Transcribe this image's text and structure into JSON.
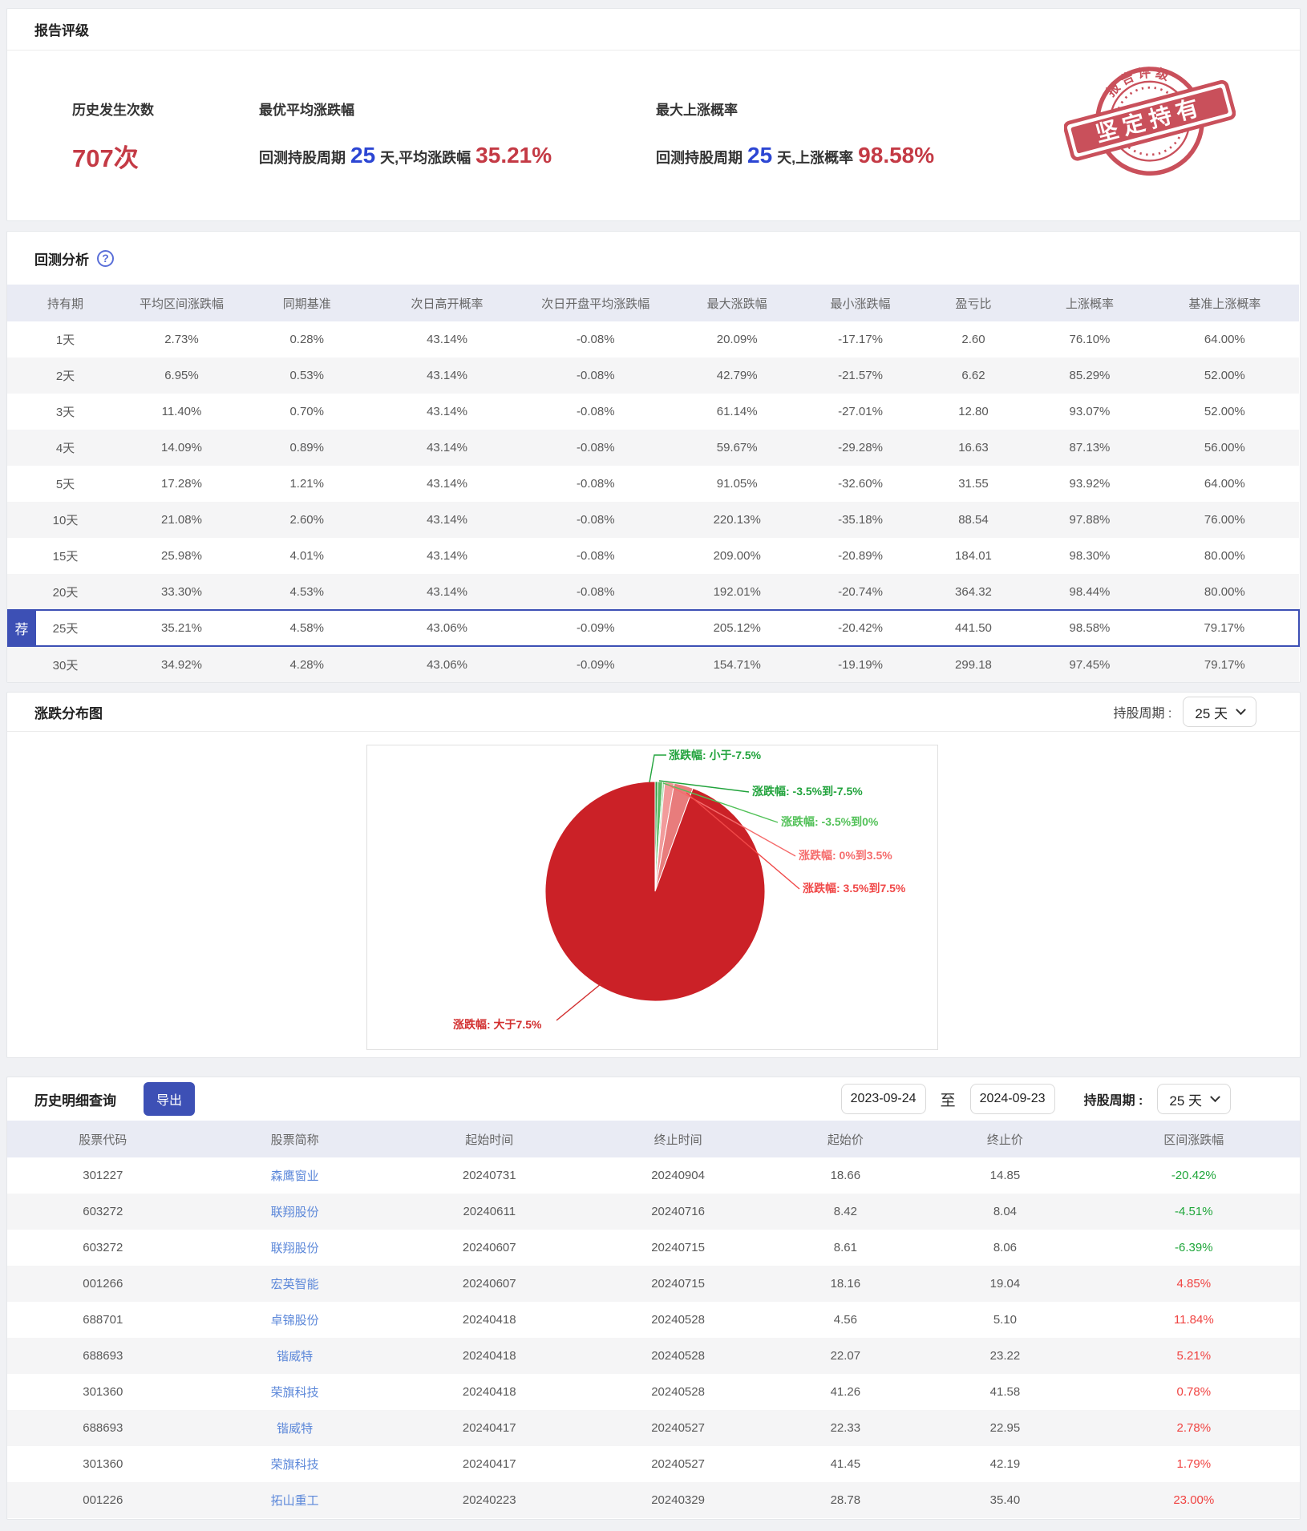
{
  "report_rating": {
    "title": "报告评级",
    "stats": [
      {
        "label": "历史发生次数",
        "value": "707次"
      },
      {
        "label": "最优平均涨跌幅",
        "prefix": "回测持股周期",
        "days": "25",
        "middle": "天,平均涨跌幅",
        "value": "35.21%"
      },
      {
        "label": "最大上涨概率",
        "prefix": "回测持股周期",
        "days": "25",
        "middle": "天,上涨概率",
        "value": "98.58%"
      }
    ],
    "stamp": {
      "arc_text": "报告评级",
      "banner_text": "坚定持有"
    }
  },
  "backtest": {
    "title": "回测分析",
    "help_icon": "?",
    "badge": "荐",
    "columns": [
      "持有期",
      "平均区间涨跌幅",
      "同期基准",
      "次日高开概率",
      "次日开盘平均涨跌幅",
      "最大涨跌幅",
      "最小涨跌幅",
      "盈亏比",
      "上涨概率",
      "基准上涨概率"
    ],
    "rows": [
      {
        "period": "1天",
        "recommended": false,
        "cells": [
          "2.73%",
          "0.28%",
          "43.14%",
          "-0.08%",
          "20.09%",
          "-17.17%",
          "2.60",
          "76.10%",
          "64.00%"
        ]
      },
      {
        "period": "2天",
        "recommended": false,
        "cells": [
          "6.95%",
          "0.53%",
          "43.14%",
          "-0.08%",
          "42.79%",
          "-21.57%",
          "6.62",
          "85.29%",
          "52.00%"
        ]
      },
      {
        "period": "3天",
        "recommended": false,
        "cells": [
          "11.40%",
          "0.70%",
          "43.14%",
          "-0.08%",
          "61.14%",
          "-27.01%",
          "12.80",
          "93.07%",
          "52.00%"
        ]
      },
      {
        "period": "4天",
        "recommended": false,
        "cells": [
          "14.09%",
          "0.89%",
          "43.14%",
          "-0.08%",
          "59.67%",
          "-29.28%",
          "16.63",
          "87.13%",
          "56.00%"
        ]
      },
      {
        "period": "5天",
        "recommended": false,
        "cells": [
          "17.28%",
          "1.21%",
          "43.14%",
          "-0.08%",
          "91.05%",
          "-32.60%",
          "31.55",
          "93.92%",
          "64.00%"
        ]
      },
      {
        "period": "10天",
        "recommended": false,
        "cells": [
          "21.08%",
          "2.60%",
          "43.14%",
          "-0.08%",
          "220.13%",
          "-35.18%",
          "88.54",
          "97.88%",
          "76.00%"
        ]
      },
      {
        "period": "15天",
        "recommended": false,
        "cells": [
          "25.98%",
          "4.01%",
          "43.14%",
          "-0.08%",
          "209.00%",
          "-20.89%",
          "184.01",
          "98.30%",
          "80.00%"
        ]
      },
      {
        "period": "20天",
        "recommended": false,
        "cells": [
          "33.30%",
          "4.53%",
          "43.14%",
          "-0.08%",
          "192.01%",
          "-20.74%",
          "364.32",
          "98.44%",
          "80.00%"
        ]
      },
      {
        "period": "25天",
        "recommended": true,
        "cells": [
          "35.21%",
          "4.58%",
          "43.06%",
          "-0.09%",
          "205.12%",
          "-20.42%",
          "441.50",
          "98.58%",
          "79.17%"
        ]
      },
      {
        "period": "30天",
        "recommended": false,
        "cells": [
          "34.92%",
          "4.28%",
          "43.06%",
          "-0.09%",
          "154.71%",
          "-19.19%",
          "299.18",
          "97.45%",
          "79.17%"
        ]
      }
    ]
  },
  "distribution": {
    "title": "涨跌分布图",
    "period_label": "持股周期 :",
    "period_value": "25 天"
  },
  "chart_data": {
    "type": "pie",
    "title": "涨跌分布图(持股周期25天)",
    "labels": [
      "涨跌幅: 小于-7.5%",
      "涨跌幅: -3.5%到-7.5%",
      "涨跌幅: -3.5%到0%",
      "涨跌幅: 0%到3.5%",
      "涨跌幅: 3.5%到7.5%",
      "涨跌幅: 大于7.5%"
    ],
    "values_pct": [
      0.4,
      0.7,
      0.3,
      1.4,
      2.8,
      94.4
    ],
    "slice_colors": [
      "#2f9e44",
      "#5cbb66",
      "#a9dcad",
      "#f29b9b",
      "#e87c7c",
      "#cb2127"
    ],
    "label_colors": [
      "#21a33c",
      "#21a33c",
      "#52c158",
      "#f56c6c",
      "#f04848",
      "#d22f2f"
    ],
    "legend_position": "none",
    "grid": false
  },
  "history": {
    "title": "历史明细查询",
    "export_label": "导出",
    "date_from": "2023-09-24",
    "range_separator": "至",
    "date_to": "2024-09-23",
    "period_label": "持股周期 :",
    "period_value": "25 天",
    "columns": [
      "股票代码",
      "股票简称",
      "起始时间",
      "终止时间",
      "起始价",
      "终止价",
      "区间涨跌幅"
    ],
    "rows": [
      {
        "code": "301227",
        "name": "森鹰窗业",
        "start": "20240731",
        "end": "20240904",
        "start_price": "18.66",
        "end_price": "14.85",
        "change": "-20.42%"
      },
      {
        "code": "603272",
        "name": "联翔股份",
        "start": "20240611",
        "end": "20240716",
        "start_price": "8.42",
        "end_price": "8.04",
        "change": "-4.51%"
      },
      {
        "code": "603272",
        "name": "联翔股份",
        "start": "20240607",
        "end": "20240715",
        "start_price": "8.61",
        "end_price": "8.06",
        "change": "-6.39%"
      },
      {
        "code": "001266",
        "name": "宏英智能",
        "start": "20240607",
        "end": "20240715",
        "start_price": "18.16",
        "end_price": "19.04",
        "change": "4.85%"
      },
      {
        "code": "688701",
        "name": "卓锦股份",
        "start": "20240418",
        "end": "20240528",
        "start_price": "4.56",
        "end_price": "5.10",
        "change": "11.84%"
      },
      {
        "code": "688693",
        "name": "锴威特",
        "start": "20240418",
        "end": "20240528",
        "start_price": "22.07",
        "end_price": "23.22",
        "change": "5.21%"
      },
      {
        "code": "301360",
        "name": "荣旗科技",
        "start": "20240418",
        "end": "20240528",
        "start_price": "41.26",
        "end_price": "41.58",
        "change": "0.78%"
      },
      {
        "code": "688693",
        "name": "锴威特",
        "start": "20240417",
        "end": "20240527",
        "start_price": "22.33",
        "end_price": "22.95",
        "change": "2.78%"
      },
      {
        "code": "301360",
        "name": "荣旗科技",
        "start": "20240417",
        "end": "20240527",
        "start_price": "41.45",
        "end_price": "42.19",
        "change": "1.79%"
      },
      {
        "code": "001226",
        "name": "拓山重工",
        "start": "20240223",
        "end": "20240329",
        "start_price": "28.78",
        "end_price": "35.40",
        "change": "23.00%"
      }
    ]
  },
  "colors": {
    "accent_indigo": "#3d50b5",
    "up_red": "#f04341",
    "down_green": "#1fa63a",
    "big_red": "#c43a45",
    "big_blue": "#2c46d3",
    "link_blue": "#5b87d9",
    "stamp_red": "#c5424e"
  }
}
